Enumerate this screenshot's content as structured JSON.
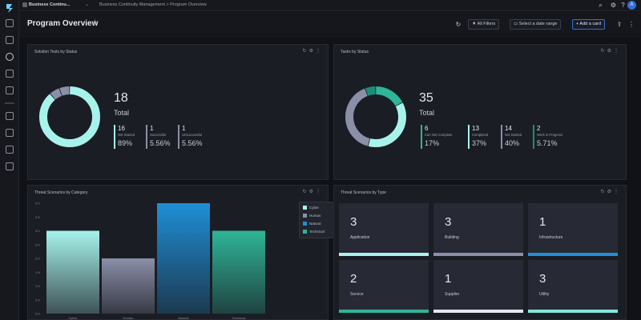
{
  "topbar": {
    "app_name": "Business Continu...",
    "breadcrumb_path": "Business Continuity Management  >  Program Overview",
    "avatar_initial": "A"
  },
  "header": {
    "title": "Program Overview",
    "all_filters": "All Filters",
    "date_range": "Select a date range",
    "add_card": "+ Add a card"
  },
  "cards": {
    "solution_tests": {
      "title": "Solution Tests by Status",
      "total_value": "18",
      "total_label": "Total",
      "stats": [
        {
          "count": "16",
          "label": "Not Started",
          "pct": "89%",
          "color": "#a7f3ec"
        },
        {
          "count": "1",
          "label": "Successful",
          "pct": "5.56%",
          "color": "#8b8fa8"
        },
        {
          "count": "1",
          "label": "Unsuccessful",
          "pct": "5.56%",
          "color": "#8b8fa8"
        }
      ]
    },
    "tasks": {
      "title": "Tasks by Status",
      "total_value": "35",
      "total_label": "Total",
      "stats": [
        {
          "count": "6",
          "label": "Can Not Complete",
          "pct": "17%",
          "color": "#2fb597"
        },
        {
          "count": "13",
          "label": "Completed",
          "pct": "37%",
          "color": "#a7f3ec"
        },
        {
          "count": "14",
          "label": "Not Started",
          "pct": "40%",
          "color": "#8b8fa8"
        },
        {
          "count": "2",
          "label": "Work in Progress",
          "pct": "5.71%",
          "color": "#1b8f77"
        }
      ]
    },
    "threat_category": {
      "title": "Threat Scenarios by Category"
    },
    "threat_type": {
      "title": "Threat Scenarios by Type",
      "tiles": [
        {
          "value": "3",
          "label": "Application",
          "color": "#a7f3ec"
        },
        {
          "value": "3",
          "label": "Building",
          "color": "#8b8fa8"
        },
        {
          "value": "1",
          "label": "Infrastructure",
          "color": "#1f8fd6"
        },
        {
          "value": "2",
          "label": "Service",
          "color": "#2fb597"
        },
        {
          "value": "1",
          "label": "Supplier",
          "color": "#e4e7ec"
        },
        {
          "value": "3",
          "label": "Utility",
          "color": "#7fe9de"
        }
      ]
    }
  },
  "chart_data": {
    "type": "bar",
    "categories": [
      "Cyber",
      "Human",
      "Natural",
      "Technical"
    ],
    "values": [
      3,
      2,
      4,
      3
    ],
    "colors": [
      "#a7f3ec",
      "#8b8fa8",
      "#1f8fd6",
      "#2fb597"
    ],
    "yticks": [
      "0.0",
      "0.5",
      "1.0",
      "1.5",
      "2.0",
      "2.5",
      "3.0",
      "3.5",
      "4.0"
    ],
    "ylim": [
      0,
      4
    ],
    "legend": [
      "Cyber",
      "Human",
      "Natural",
      "Technical"
    ],
    "legend_position": "top-right",
    "grid": false
  },
  "donuts": {
    "solution_tests": [
      {
        "value": 16,
        "color": "#a7f3ec"
      },
      {
        "value": 1,
        "color": "#8b8fa8"
      },
      {
        "value": 1,
        "color": "#8b8fa8"
      }
    ],
    "tasks": [
      {
        "value": 6,
        "color": "#2fb597"
      },
      {
        "value": 13,
        "color": "#a7f3ec"
      },
      {
        "value": 14,
        "color": "#8b8fa8"
      },
      {
        "value": 2,
        "color": "#1b8f77"
      }
    ]
  }
}
